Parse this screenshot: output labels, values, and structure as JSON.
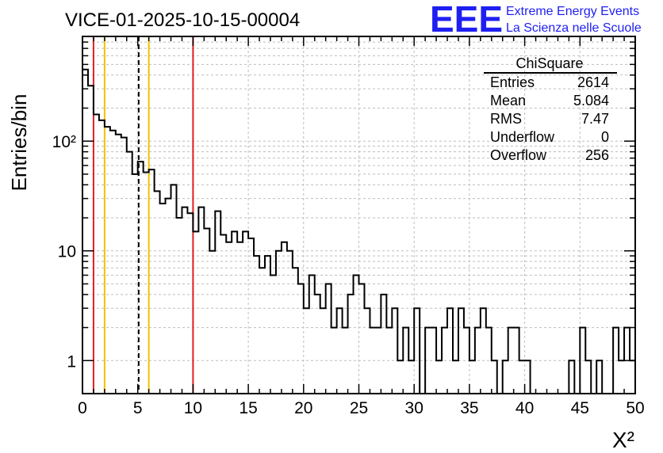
{
  "header": {
    "title": "VICE-01-2025-10-15-00004",
    "logo_text": "EEE",
    "logo_line1": "Extreme Energy Events",
    "logo_line2": "La Scienza nelle Scuole",
    "logo_color": "#1f1ff2"
  },
  "stats": {
    "name": "ChiSquare",
    "rows": [
      {
        "label": "Entries",
        "value": "2614"
      },
      {
        "label": "Mean",
        "value": "5.084"
      },
      {
        "label": "RMS",
        "value": "7.47"
      },
      {
        "label": "Underflow",
        "value": "0"
      },
      {
        "label": "Overflow",
        "value": "256"
      }
    ]
  },
  "chart_data": {
    "type": "histogram",
    "title": "VICE-01-2025-10-15-00004",
    "xlabel": "X²",
    "ylabel": "Entries/bin",
    "xlim": [
      0,
      50
    ],
    "ylim": [
      0.5,
      900
    ],
    "yscale": "log",
    "grid": true,
    "bin_width": 0.5,
    "x_ticks": [
      "0",
      "5",
      "10",
      "15",
      "20",
      "25",
      "30",
      "35",
      "40",
      "45",
      "50"
    ],
    "y_ticks": [
      {
        "value": 1,
        "label": "1"
      },
      {
        "value": 10,
        "label": "10"
      },
      {
        "value": 100,
        "label": "10²"
      }
    ],
    "counts": [
      450,
      320,
      175,
      155,
      135,
      125,
      115,
      108,
      80,
      50,
      65,
      52,
      55,
      35,
      27,
      30,
      40,
      20,
      25,
      22,
      15,
      25,
      16,
      10,
      23,
      14,
      12,
      15,
      12,
      15,
      13,
      9,
      7,
      9,
      6,
      10,
      12,
      10,
      7,
      5,
      3,
      6,
      4,
      3,
      5,
      2,
      3,
      2,
      4,
      6,
      5,
      3,
      2,
      2,
      4,
      2,
      3,
      1,
      2,
      1,
      3,
      0.4,
      2,
      2,
      1,
      2,
      3,
      1,
      3,
      2,
      1,
      2,
      3,
      2,
      1,
      0.4,
      1,
      2,
      2,
      1,
      1,
      0.4,
      0.4,
      0.4,
      0.4,
      0.4,
      0.4,
      0.4,
      1,
      0.4,
      2,
      1,
      0.4,
      1,
      0.4,
      0.4,
      2,
      1,
      2,
      1
    ],
    "vertical_lines": [
      {
        "x": 1,
        "color": "#e02020",
        "style": "solid"
      },
      {
        "x": 2,
        "color": "#f2c200",
        "style": "solid"
      },
      {
        "x": 5.084,
        "color": "#000000",
        "style": "dashed"
      },
      {
        "x": 6,
        "color": "#f2c200",
        "style": "solid"
      },
      {
        "x": 10,
        "color": "#e02020",
        "style": "solid"
      }
    ]
  }
}
